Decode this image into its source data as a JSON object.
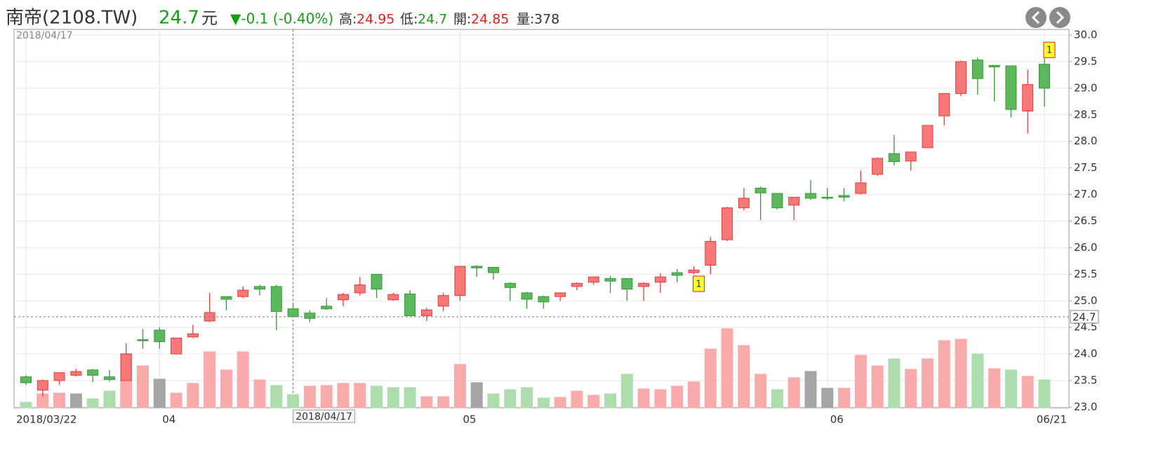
{
  "header": {
    "name": "南帝(2108.TW)",
    "price": 24.7,
    "unit": "元",
    "change": "▼-0.1 (-0.40%)",
    "high_label": "高:",
    "high": 24.95,
    "low_label": "低:",
    "low": 24.7,
    "open_label": "開:",
    "open": 24.85,
    "volume_label": "量:",
    "volume": 378
  },
  "chart_data": {
    "type": "candlestick",
    "categories": [
      "2018/03/22",
      null,
      null,
      null,
      null,
      null,
      null,
      null,
      "04",
      null,
      null,
      null,
      null,
      null,
      null,
      null,
      "2018/04/17",
      null,
      null,
      null,
      null,
      null,
      null,
      null,
      null,
      null,
      "05",
      null,
      null,
      null,
      null,
      null,
      null,
      null,
      null,
      null,
      null,
      null,
      null,
      null,
      null,
      null,
      null,
      null,
      null,
      null,
      null,
      null,
      "06",
      null,
      null,
      null,
      null,
      null,
      null,
      null,
      null,
      null,
      null,
      null,
      null,
      "06/21"
    ],
    "open": [
      23.57,
      23.32,
      23.5,
      23.6,
      23.7,
      23.57,
      23.5,
      24.27,
      24.45,
      24.0,
      24.32,
      24.62,
      25.08,
      25.08,
      25.27,
      25.27,
      24.85,
      24.77,
      24.9,
      25.02,
      25.15,
      25.5,
      25.02,
      25.13,
      24.72,
      24.9,
      25.1,
      25.65,
      25.63,
      25.33,
      25.15,
      25.08,
      25.08,
      25.27,
      25.35,
      25.42,
      25.42,
      25.27,
      25.35,
      25.53,
      25.53,
      25.67,
      26.15,
      26.75,
      27.12,
      27.02,
      26.8,
      27.02,
      26.95,
      26.98,
      27.02,
      27.38,
      27.77,
      27.63,
      27.88,
      28.48,
      28.9,
      29.53,
      29.43,
      29.42,
      28.57,
      29.45
    ],
    "high": [
      23.6,
      23.52,
      23.66,
      23.72,
      23.72,
      23.7,
      24.2,
      24.47,
      24.5,
      24.3,
      24.55,
      25.15,
      25.08,
      25.27,
      25.3,
      25.3,
      24.95,
      24.82,
      25.05,
      25.15,
      25.45,
      25.5,
      25.15,
      25.2,
      24.87,
      25.15,
      25.65,
      25.67,
      25.63,
      25.35,
      25.17,
      25.1,
      25.15,
      25.35,
      25.45,
      25.47,
      25.42,
      25.35,
      25.52,
      25.6,
      25.65,
      26.2,
      26.77,
      27.12,
      27.15,
      27.02,
      26.95,
      27.27,
      27.12,
      27.12,
      27.45,
      27.7,
      28.12,
      27.8,
      28.3,
      28.9,
      29.52,
      29.58,
      29.43,
      29.42,
      29.35,
      29.58
    ],
    "low": [
      23.42,
      23.2,
      23.42,
      23.58,
      23.47,
      23.48,
      23.5,
      24.1,
      24.1,
      24.0,
      24.3,
      24.6,
      24.82,
      25.05,
      25.1,
      24.45,
      24.7,
      24.6,
      24.83,
      24.9,
      25.1,
      25.05,
      25.0,
      24.72,
      24.62,
      24.8,
      25.0,
      25.45,
      25.4,
      25.0,
      24.85,
      24.85,
      25.0,
      25.2,
      25.3,
      25.15,
      25.0,
      25.0,
      25.15,
      25.35,
      25.5,
      25.5,
      26.12,
      26.7,
      26.52,
      26.72,
      26.52,
      26.9,
      26.9,
      26.87,
      27.0,
      27.35,
      27.55,
      27.45,
      27.88,
      28.3,
      28.85,
      28.88,
      28.75,
      28.45,
      28.15,
      28.65
    ],
    "close": [
      23.46,
      23.5,
      23.65,
      23.67,
      23.6,
      23.52,
      24.0,
      24.25,
      24.23,
      24.3,
      24.38,
      24.78,
      25.03,
      25.2,
      25.22,
      24.8,
      24.7,
      24.67,
      24.85,
      25.12,
      25.3,
      25.22,
      25.12,
      24.72,
      24.83,
      25.1,
      25.65,
      25.62,
      25.53,
      25.25,
      25.03,
      24.98,
      25.15,
      25.33,
      25.45,
      25.37,
      25.22,
      25.33,
      25.45,
      25.48,
      25.58,
      26.12,
      26.75,
      26.93,
      27.03,
      26.75,
      26.95,
      26.93,
      26.93,
      26.95,
      27.22,
      27.68,
      27.62,
      27.8,
      28.3,
      28.9,
      29.5,
      29.18,
      29.4,
      28.6,
      29.07,
      29.0
    ],
    "volume": [
      160,
      400,
      420,
      400,
      260,
      480,
      1550,
      1200,
      820,
      420,
      700,
      1600,
      1080,
      1600,
      800,
      640,
      378,
      620,
      640,
      700,
      700,
      620,
      580,
      580,
      320,
      320,
      1240,
      720,
      400,
      520,
      580,
      280,
      300,
      480,
      360,
      400,
      960,
      540,
      520,
      620,
      740,
      1680,
      2260,
      1780,
      960,
      520,
      860,
      1040,
      560,
      560,
      1500,
      1200,
      1400,
      1100,
      1400,
      1920,
      1960,
      1540,
      1120,
      1080,
      900,
      800
    ],
    "volume_colors": [
      "#addcad",
      "#f9aaaa",
      "#f9aaaa",
      "#a6a6a6",
      "#addcad",
      "#addcad",
      "#f9aaaa",
      "#f9aaaa",
      "#a6a6a6",
      "#f9aaaa",
      "#f9aaaa",
      "#f9aaaa",
      "#f9aaaa",
      "#f9aaaa",
      "#f9aaaa",
      "#addcad",
      "#addcad",
      "#f9aaaa",
      "#f9aaaa",
      "#f9aaaa",
      "#f9aaaa",
      "#addcad",
      "#addcad",
      "#addcad",
      "#f9aaaa",
      "#f9aaaa",
      "#f9aaaa",
      "#a6a6a6",
      "#addcad",
      "#addcad",
      "#addcad",
      "#addcad",
      "#f9aaaa",
      "#f9aaaa",
      "#f9aaaa",
      "#addcad",
      "#addcad",
      "#f9aaaa",
      "#f9aaaa",
      "#f9aaaa",
      "#f9aaaa",
      "#f9aaaa",
      "#f9aaaa",
      "#f9aaaa",
      "#f9aaaa",
      "#addcad",
      "#f9aaaa",
      "#a6a6a6",
      "#a6a6a6",
      "#f9aaaa",
      "#f9aaaa",
      "#f9aaaa",
      "#addcad",
      "#f9aaaa",
      "#f9aaaa",
      "#f9aaaa",
      "#f9aaaa",
      "#addcad",
      "#f9aaaa",
      "#addcad",
      "#f9aaaa",
      "#addcad"
    ],
    "up_color": "#f87878",
    "down_color": "#5cb85c",
    "ylim": [
      23,
      30
    ],
    "yticks": [
      {
        "value": 23,
        "label": "23.0"
      },
      23.5,
      {
        "value": 24,
        "label": "24.0"
      },
      24.5,
      {
        "value": 25,
        "label": "25.0"
      },
      25.5,
      {
        "value": 26,
        "label": "26.0"
      },
      26.5,
      {
        "value": 27,
        "label": "27.0"
      },
      27.5,
      {
        "value": 28,
        "label": "28.0"
      },
      28.5,
      {
        "value": 29,
        "label": "29.0"
      },
      29.5,
      {
        "value": 30,
        "label": "30.0"
      }
    ],
    "grid": true,
    "price_line": 24.7,
    "crosshair": "2018/04/17",
    "markers": [
      {
        "index": 40,
        "value": 25.32,
        "label": "1"
      },
      {
        "index": 61,
        "value": 29.72,
        "label": "1"
      }
    ]
  }
}
